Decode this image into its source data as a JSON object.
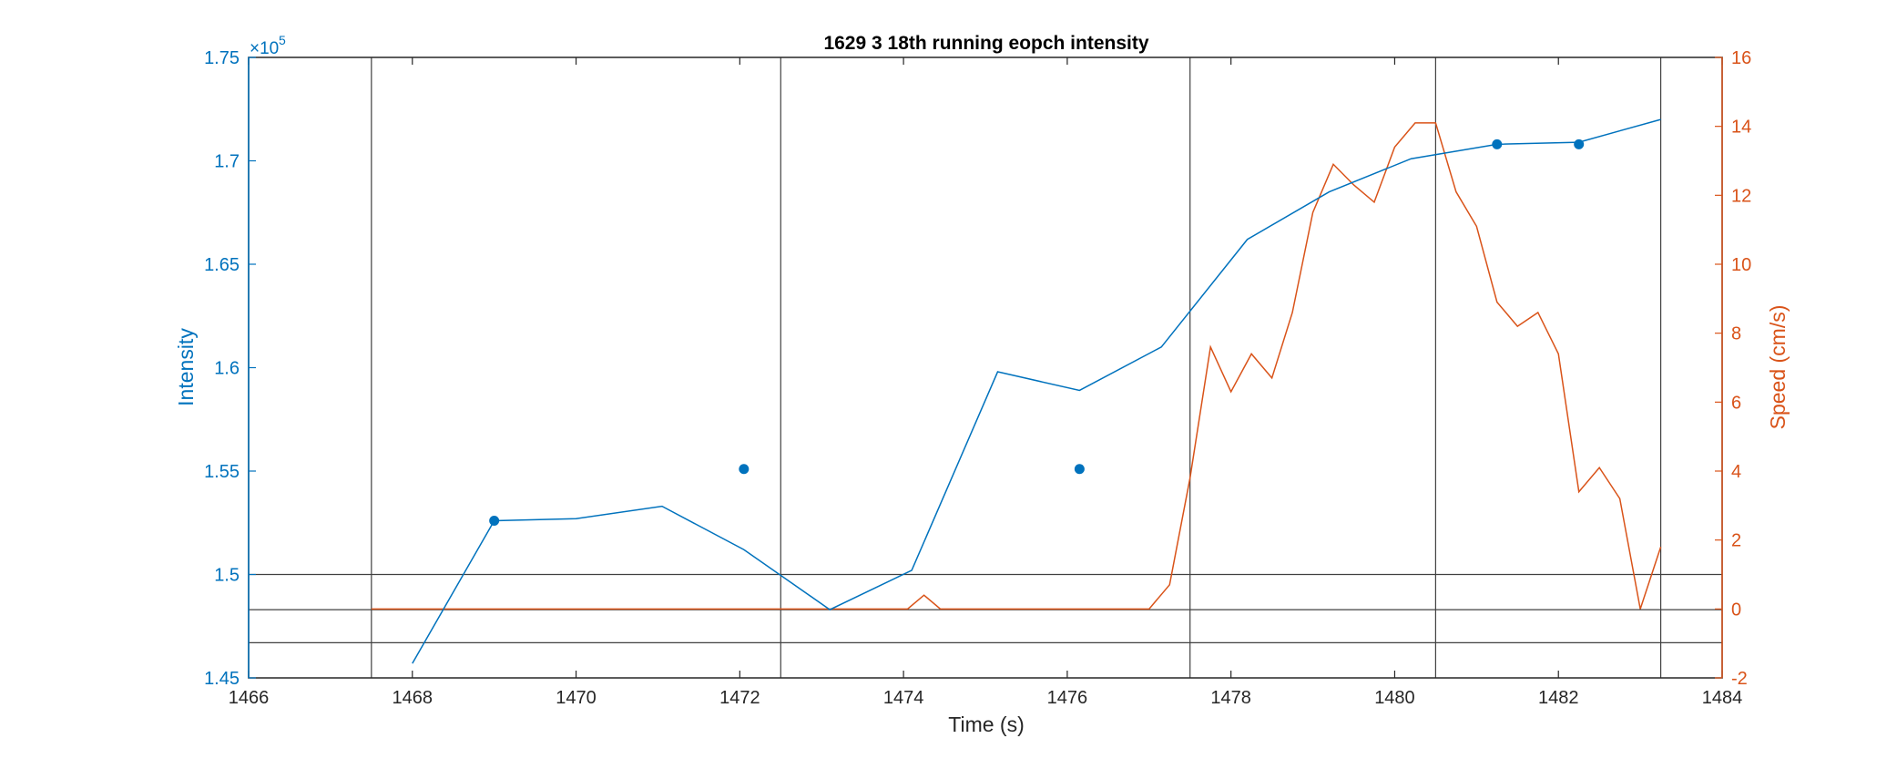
{
  "chart_data": {
    "type": "line",
    "title": "1629 3 18th running eopch intensity",
    "xlabel": "Time (s)",
    "ylabel_left": "Intensity",
    "ylabel_right": "Speed (cm/s)",
    "left_exponent_base": "×10",
    "left_exponent_power": "5",
    "xlim": [
      1466,
      1484
    ],
    "ylim_left": [
      1.45,
      1.75
    ],
    "ylim_right": [
      -2,
      16
    ],
    "x_ticks": [
      "1466",
      "1468",
      "1470",
      "1472",
      "1474",
      "1476",
      "1478",
      "1480",
      "1482",
      "1484"
    ],
    "y_left_ticks": [
      "1.45",
      "1.5",
      "1.55",
      "1.6",
      "1.65",
      "1.7",
      "1.75"
    ],
    "y_right_ticks": [
      "-2",
      "0",
      "2",
      "4",
      "6",
      "8",
      "10",
      "12",
      "14",
      "16"
    ],
    "colors": {
      "intensity": "#0072bd",
      "speed": "#d95319",
      "axes": "#262626",
      "refline": "#404040"
    },
    "series": [
      {
        "name": "Intensity",
        "axis": "left",
        "x": [
          1468.0,
          1469.0,
          1470.0,
          1471.05,
          1472.05,
          1473.1,
          1474.1,
          1475.15,
          1476.15,
          1477.15,
          1478.2,
          1479.2,
          1480.2,
          1481.25,
          1482.25,
          1483.25
        ],
        "y": [
          1.457,
          1.526,
          1.527,
          1.533,
          1.512,
          1.483,
          1.502,
          1.598,
          1.589,
          1.61,
          1.662,
          1.685,
          1.701,
          1.708,
          1.709,
          1.72
        ]
      },
      {
        "name": "Speed",
        "axis": "right",
        "x": [
          1467.5,
          1474.05,
          1474.25,
          1474.45,
          1477.0,
          1477.25,
          1477.5,
          1477.75,
          1478.0,
          1478.25,
          1478.5,
          1478.75,
          1479.0,
          1479.25,
          1479.5,
          1479.75,
          1480.0,
          1480.25,
          1480.5,
          1480.75,
          1481.0,
          1481.25,
          1481.5,
          1481.75,
          1482.0,
          1482.25,
          1482.5,
          1482.75,
          1483.0,
          1483.25
        ],
        "y": [
          0,
          0,
          0.4,
          0,
          0,
          0.7,
          3.8,
          7.6,
          6.3,
          7.4,
          6.7,
          8.6,
          11.5,
          12.9,
          12.3,
          11.8,
          13.4,
          14.1,
          14.1,
          12.1,
          11.1,
          8.9,
          8.2,
          8.6,
          7.4,
          3.4,
          4.1,
          3.2,
          0,
          1.8
        ]
      },
      {
        "name": "Epoch markers",
        "axis": "left",
        "style": "markers",
        "x": [
          1469.0,
          1472.05,
          1476.15,
          1481.25,
          1482.25
        ],
        "y": [
          1.526,
          1.551,
          1.551,
          1.708,
          1.708
        ]
      }
    ],
    "vertical_lines_x": [
      1467.5,
      1472.5,
      1477.5,
      1480.5,
      1483.25
    ],
    "horizontal_lines_y": [
      1.5,
      1.483,
      1.467
    ]
  }
}
